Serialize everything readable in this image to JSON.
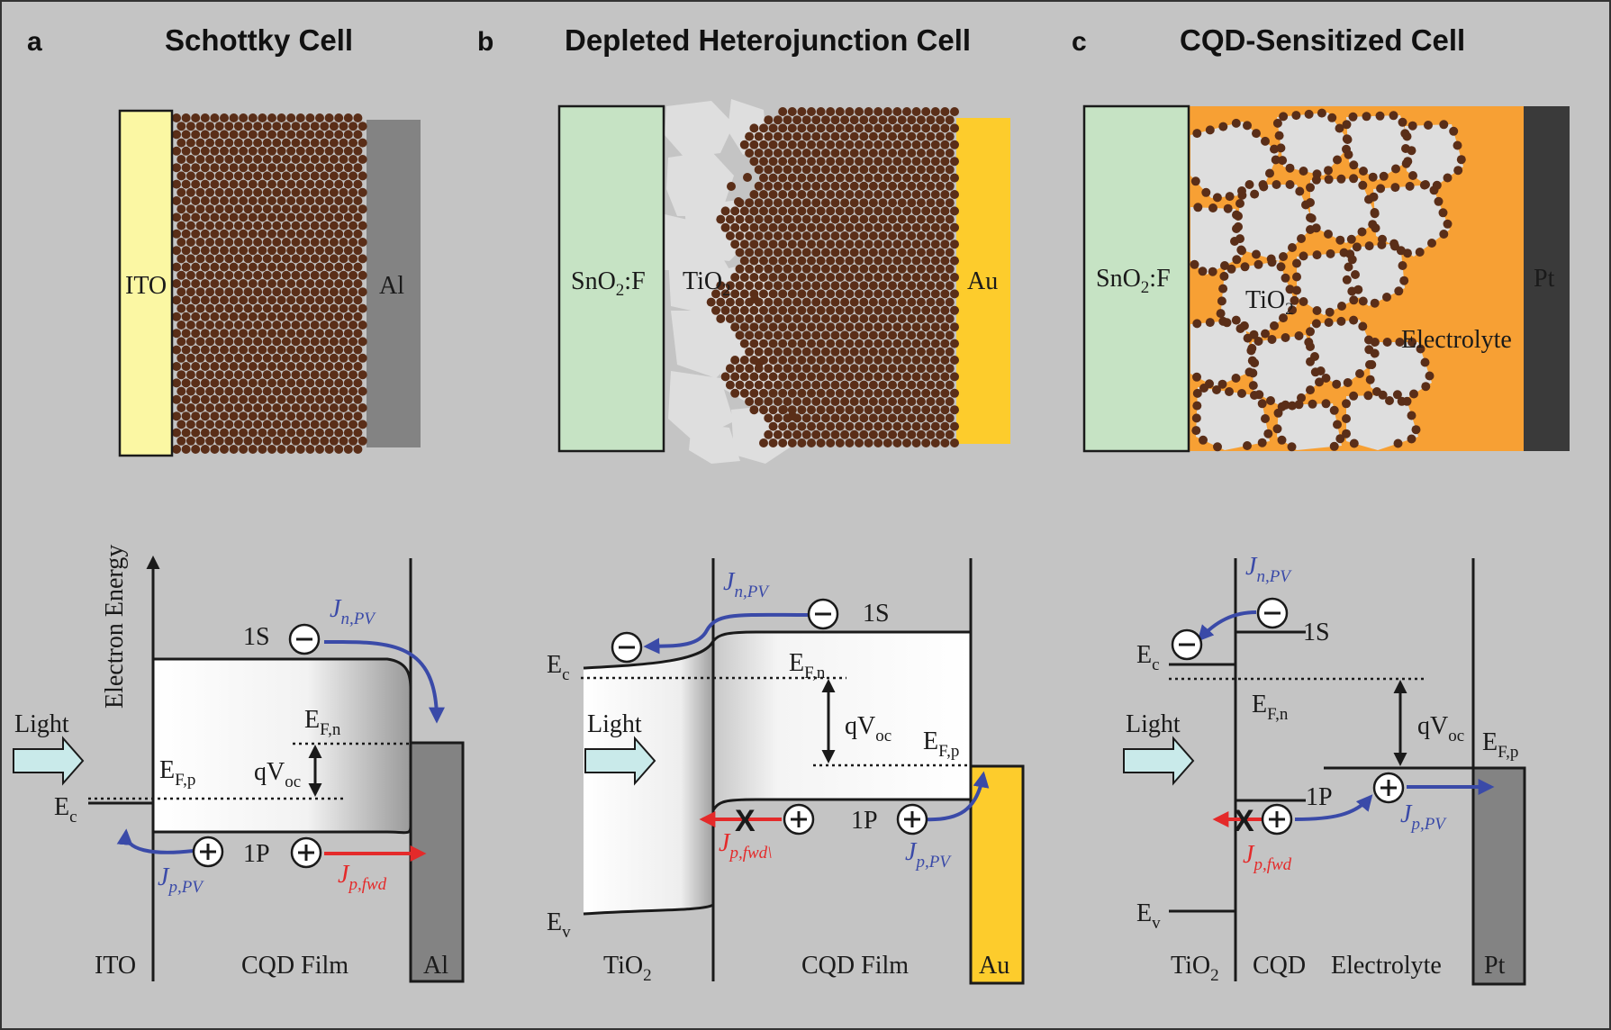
{
  "colors": {
    "background": "#c4c4c4",
    "ito": "#fbf7a3",
    "tco": "#c6e3c4",
    "al": "#838383",
    "au": "#fdcc2c",
    "pt": "#3a3a3a",
    "electrolyte": "#f7a034",
    "qd": "#5a2e18",
    "tio2": "#dedede",
    "photocurrent_blue": "#3a4aa8",
    "forward_red": "#e42a2a",
    "light_arrow": "#c9eaea"
  },
  "panels": {
    "a": {
      "letter": "a",
      "title": "Schottky Cell",
      "device": {
        "left": "ITO",
        "right": "Al"
      },
      "band": {
        "axis_label": "Electron Energy",
        "light": "Light",
        "ec": "E",
        "ec_sub": "c",
        "efp": "E",
        "efp_sub": "F,p",
        "efn": "E",
        "efn_sub": "F,n",
        "qvoc": "qV",
        "qvoc_sub": "oc",
        "s_level": "1S",
        "p_level": "1P",
        "jn": "J",
        "jn_sub": "n,PV",
        "jp": "J",
        "jp_sub": "p,PV",
        "jfwd": "J",
        "jfwd_sub": "p,fwd",
        "bottom": [
          "ITO",
          "CQD Film",
          "Al"
        ]
      }
    },
    "b": {
      "letter": "b",
      "title": "Depleted Heterojunction Cell",
      "device": {
        "left": "SnO",
        "left_sub": "2",
        "left_tail": ":F",
        "middle": "TiO",
        "middle_sub": "2",
        "right": "Au"
      },
      "band": {
        "light": "Light",
        "ec": "E",
        "ec_sub": "c",
        "ev": "E",
        "ev_sub": "v",
        "efn": "E",
        "efn_sub": "F,n",
        "efp": "E",
        "efp_sub": "F,p",
        "qvoc": "qV",
        "qvoc_sub": "oc",
        "s_level": "1S",
        "p_level": "1P",
        "jn": "J",
        "jn_sub": "n,PV",
        "jfwd": "J",
        "jfwd_sub": "p,fwd\\",
        "jp": "J",
        "jp_sub": "p,PV",
        "bottom": [
          "TiO",
          "CQD Film",
          "Au"
        ],
        "bottom_sub": "2",
        "blocked": "X"
      }
    },
    "c": {
      "letter": "c",
      "title": "CQD-Sensitized Cell",
      "device": {
        "left": "SnO",
        "left_sub": "2",
        "left_tail": ":F",
        "middle": "TiO",
        "middle_sub": "2",
        "electrolyte": "Electrolyte",
        "right": "Pt"
      },
      "band": {
        "light": "Light",
        "ec": "E",
        "ec_sub": "c",
        "ev": "E",
        "ev_sub": "v",
        "efn": "E",
        "efn_sub": "F,n",
        "efp": "E",
        "efp_sub": "F,p",
        "qvoc": "qV",
        "qvoc_sub": "oc",
        "s_level": "1S",
        "p_level": "1P",
        "jn": "J",
        "jn_sub": "n,PV",
        "jfwd": "J",
        "jfwd_sub": "p,fwd",
        "jp": "J",
        "jp_sub": "p,PV",
        "bottom": [
          "TiO",
          "CQD",
          "Electrolyte",
          "Pt"
        ],
        "bottom_sub": "2",
        "blocked": "X"
      }
    }
  }
}
